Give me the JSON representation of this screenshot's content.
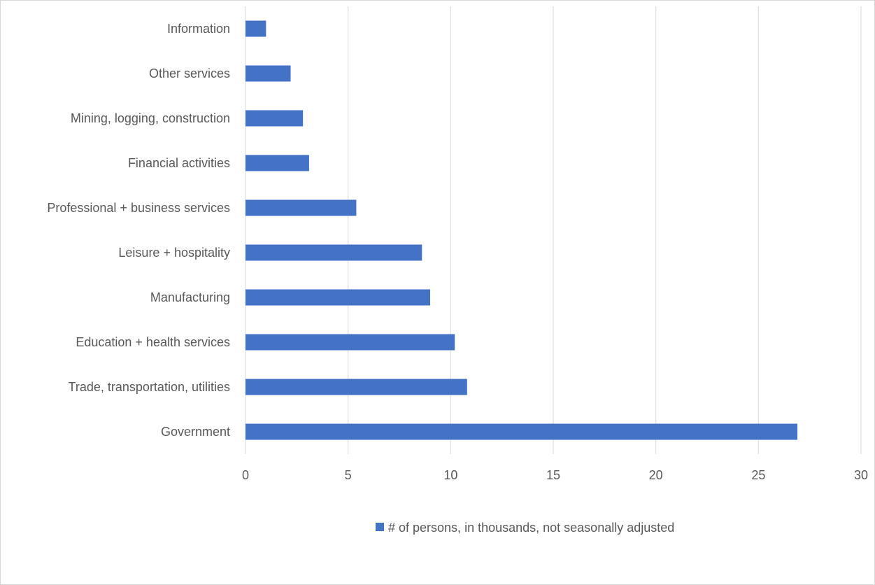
{
  "chart_data": {
    "type": "bar",
    "orientation": "horizontal",
    "categories": [
      "Information",
      "Other services",
      "Mining, logging, construction",
      "Financial activities",
      "Professional + business services",
      "Leisure + hospitality",
      "Manufacturing",
      "Education + health services",
      "Trade, transportation, utilities",
      "Government"
    ],
    "series": [
      {
        "name": "# of persons, in thousands, not seasonally adjusted",
        "color": "#4472c4",
        "values": [
          1.0,
          2.2,
          2.8,
          3.1,
          5.4,
          8.6,
          9.0,
          10.2,
          10.8,
          26.9
        ]
      }
    ],
    "xlim": [
      0,
      30
    ],
    "xticks": [
      0,
      5,
      10,
      15,
      20,
      25,
      30
    ],
    "grid": "vertical",
    "legend": "bottom"
  }
}
